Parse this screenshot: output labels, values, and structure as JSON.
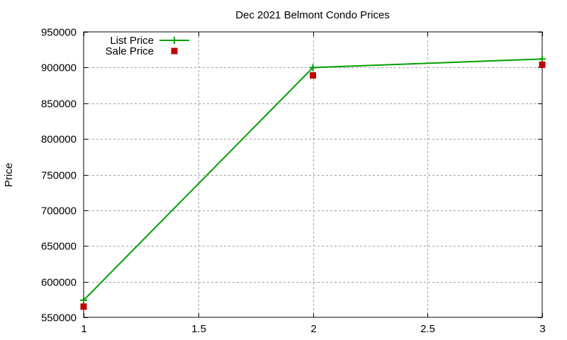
{
  "colors": {
    "list_price": "#00a000",
    "sale_price": "#c00000",
    "grid": "#a0a0a0",
    "axis": "#000000",
    "background": "#ffffff"
  },
  "chart_data": {
    "type": "line",
    "title": "Dec 2021 Belmont Condo Prices",
    "xlabel": "",
    "ylabel": "Price",
    "x": [
      1,
      2,
      3
    ],
    "xlim": [
      1,
      3
    ],
    "ylim": [
      550000,
      950000
    ],
    "x_ticks": [
      1,
      1.5,
      2,
      2.5,
      3
    ],
    "x_tick_labels": [
      "1",
      "1.5",
      "2",
      "2.5",
      "3"
    ],
    "y_ticks": [
      550000,
      600000,
      650000,
      700000,
      750000,
      800000,
      850000,
      900000,
      950000
    ],
    "y_tick_labels": [
      "550000",
      "600000",
      "650000",
      "700000",
      "750000",
      "800000",
      "850000",
      "900000",
      "950000"
    ],
    "grid": true,
    "legend_position": "top-left",
    "series": [
      {
        "name": "List Price",
        "style": "linespoints",
        "marker": "plus",
        "color": "#00a000",
        "values": [
          574000,
          900000,
          912000
        ]
      },
      {
        "name": "Sale Price",
        "style": "points",
        "marker": "square",
        "color": "#c00000",
        "values": [
          565000,
          889000,
          904000
        ]
      }
    ]
  }
}
